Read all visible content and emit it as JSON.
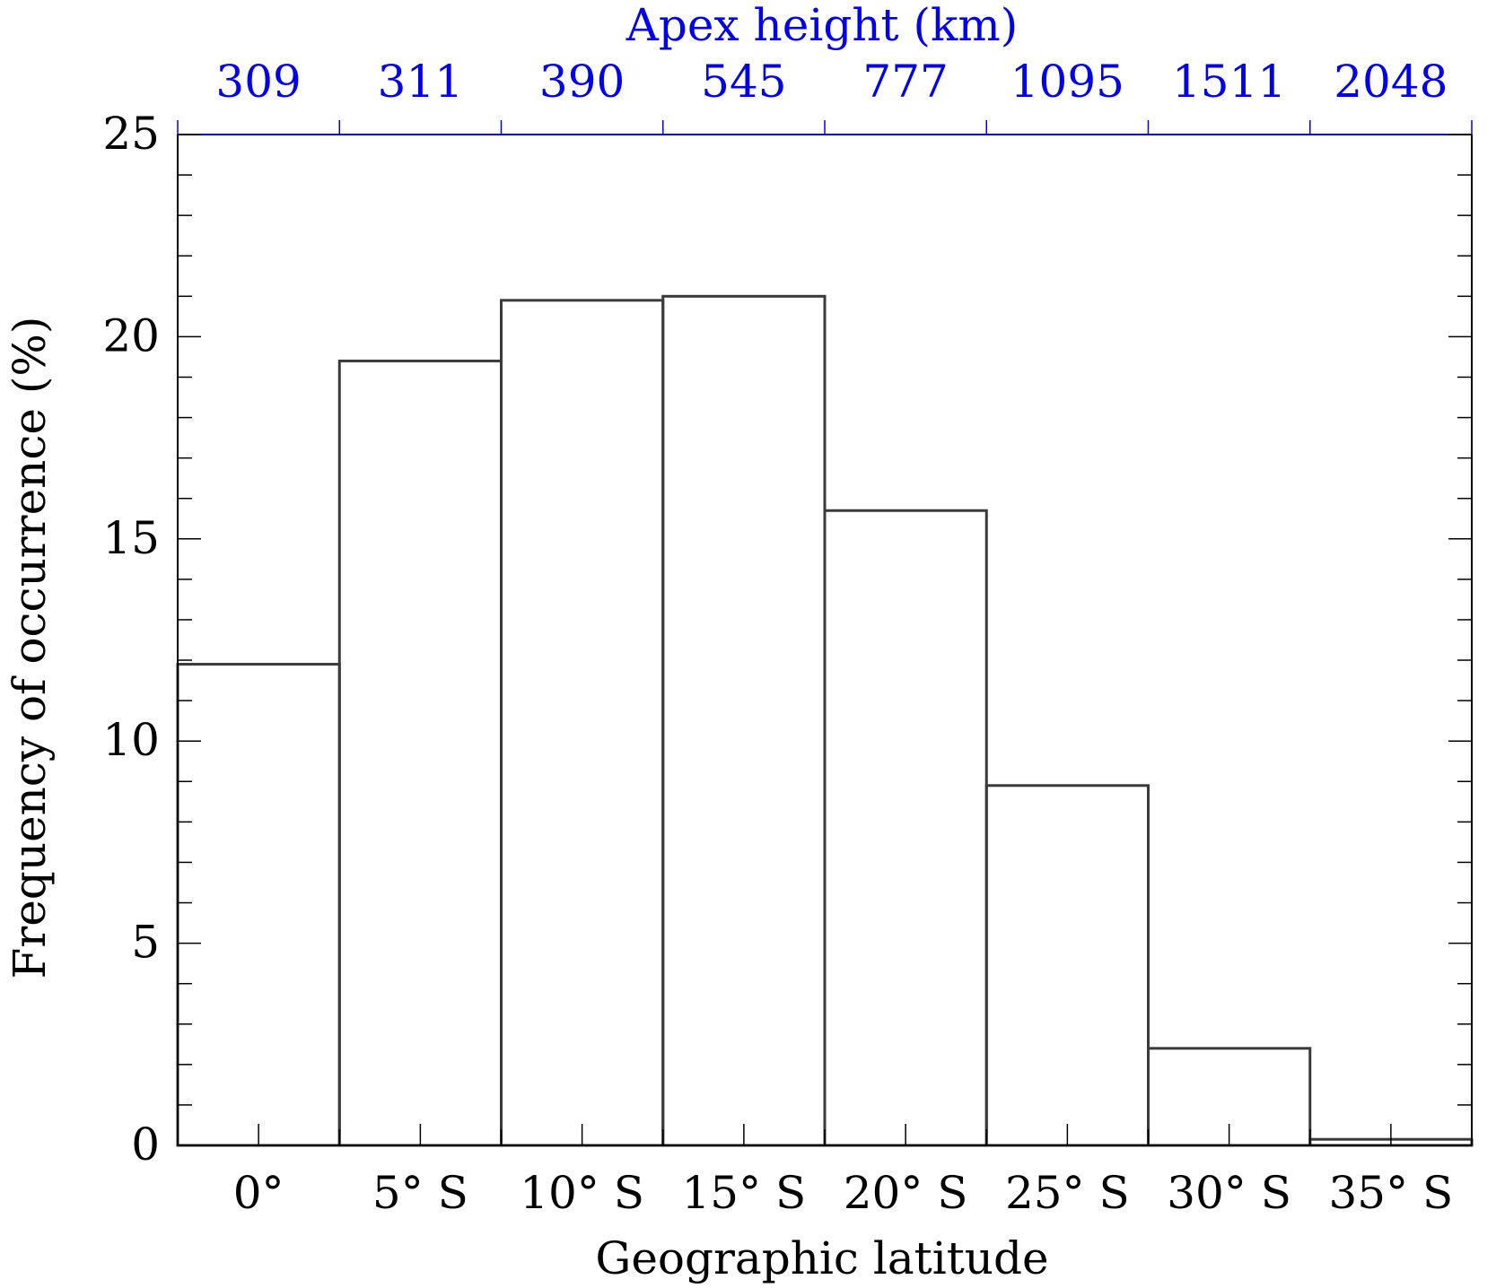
{
  "chart_data": {
    "type": "bar",
    "xlabel": "Geographic latitude",
    "ylabel": "Frequency of occurrence (%)",
    "top_xlabel": "Apex height (km)",
    "categories": [
      "0°",
      "5° S",
      "10° S",
      "15° S",
      "20° S",
      "25° S",
      "30° S",
      "35° S"
    ],
    "top_categories": [
      "309",
      "311",
      "390",
      "545",
      "777",
      "1095",
      "1511",
      "2048"
    ],
    "values": [
      11.9,
      19.4,
      20.9,
      21.0,
      15.7,
      8.9,
      2.4,
      0.15
    ],
    "ylim": [
      0,
      25
    ],
    "yticks": [
      0,
      5,
      10,
      15,
      20,
      25
    ],
    "yminor_step": 1,
    "grid": false,
    "bar_fill": "none",
    "colors": {
      "bar_edge": "#3a3a3a",
      "axis": "#000000",
      "top_axis": "#0000ee",
      "text": "#000000"
    }
  }
}
